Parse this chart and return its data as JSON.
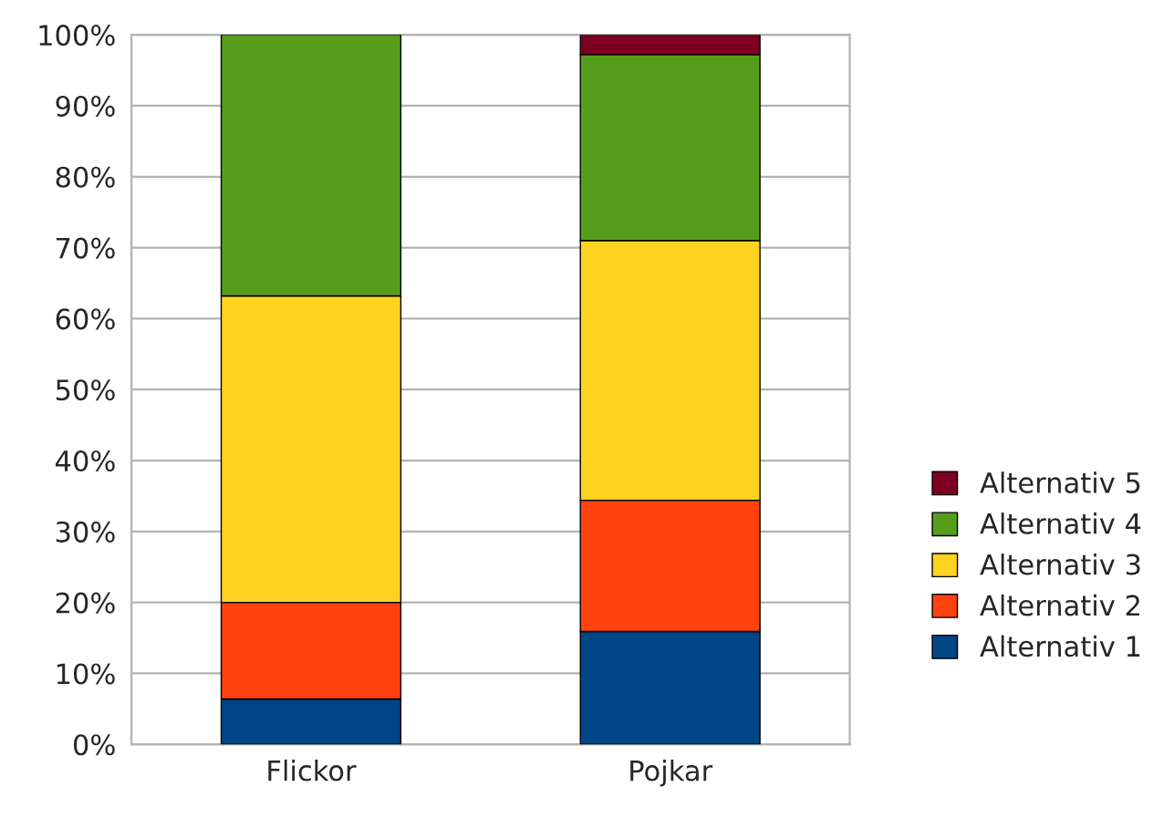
{
  "chart_data": {
    "type": "bar",
    "stacked": true,
    "categories": [
      "Flickor",
      "Pojkar"
    ],
    "series": [
      {
        "name": "Alternativ 1",
        "color": "#004586",
        "values": [
          6.4,
          15.9
        ]
      },
      {
        "name": "Alternativ 2",
        "color": "#ff420e",
        "values": [
          13.6,
          18.5
        ]
      },
      {
        "name": "Alternativ 3",
        "color": "#ffd320",
        "values": [
          43.2,
          36.6
        ]
      },
      {
        "name": "Alternativ 4",
        "color": "#579d1c",
        "values": [
          36.8,
          26.2
        ]
      },
      {
        "name": "Alternativ 5",
        "color": "#7e0021",
        "values": [
          null,
          2.8
        ]
      }
    ],
    "ylim": [
      0,
      100
    ],
    "yticks": [
      {
        "value": 0,
        "label": "0%"
      },
      {
        "value": 10,
        "label": "10%"
      },
      {
        "value": 20,
        "label": "20%"
      },
      {
        "value": 30,
        "label": "30%"
      },
      {
        "value": 40,
        "label": "40%"
      },
      {
        "value": 50,
        "label": "50%"
      },
      {
        "value": 60,
        "label": "60%"
      },
      {
        "value": 70,
        "label": "70%"
      },
      {
        "value": 80,
        "label": "80%"
      },
      {
        "value": 90,
        "label": "90%"
      },
      {
        "value": 100,
        "label": "100%"
      }
    ],
    "grid": "y",
    "legend": "right"
  }
}
